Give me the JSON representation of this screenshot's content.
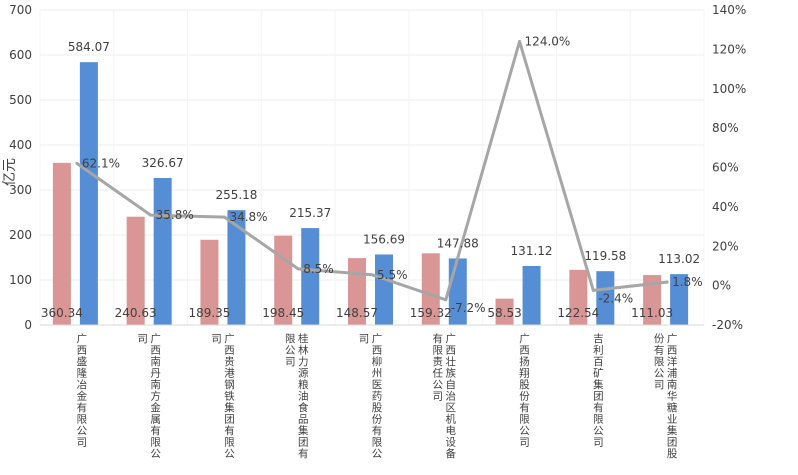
{
  "chart_data": {
    "type": "bar",
    "ylabel": "亿元",
    "ylim": [
      0,
      700
    ],
    "y_ticks": [
      "0",
      "100",
      "200",
      "300",
      "400",
      "500",
      "600",
      "700"
    ],
    "y2lim": [
      -20,
      140
    ],
    "y2_ticks": [
      "-20%",
      "0%",
      "20%",
      "40%",
      "60%",
      "80%",
      "100%",
      "120%",
      "140%"
    ],
    "grid": true,
    "categories": [
      "广西盛隆冶金有限公司",
      "广西南丹南方金属有限公司",
      "广西贵港钢铁集团有限公司",
      "桂林力源粮油食品集团有限公司",
      "广西柳州医药股份有限公司",
      "广西壮族自治区机电设备有限责任公司",
      "广西扬翔股份有限公司",
      "吉利百矿集团有限公司",
      "广西洋浦南华糖业集团股份有限公司"
    ],
    "series": [
      {
        "kind": "bar",
        "color": "#d99694",
        "values": [
          360.34,
          240.63,
          189.35,
          198.45,
          148.57,
          159.32,
          58.53,
          122.54,
          111.03
        ],
        "labels": [
          "360.34",
          "240.63",
          "189.35",
          "198.45",
          "148.57",
          "159.32",
          "58.53",
          "122.54",
          "111.03"
        ]
      },
      {
        "kind": "bar",
        "color": "#558ed5",
        "values": [
          584.07,
          326.67,
          255.18,
          215.37,
          156.69,
          147.88,
          131.12,
          119.58,
          113.02
        ],
        "labels": [
          "584.07",
          "326.67",
          "255.18",
          "215.37",
          "156.69",
          "147.88",
          "131.12",
          "119.58",
          "113.02"
        ]
      },
      {
        "kind": "line",
        "axis": "secondary",
        "color": "#a6a6a6",
        "values": [
          62.1,
          35.8,
          34.8,
          8.5,
          5.5,
          -7.2,
          124.0,
          -2.4,
          1.8
        ],
        "labels": [
          "62.1%",
          "35.8%",
          "34.8%",
          "8.5%",
          "5.5%",
          "-7.2%",
          "124.0%",
          "-2.4%",
          "1.8%"
        ]
      }
    ]
  }
}
